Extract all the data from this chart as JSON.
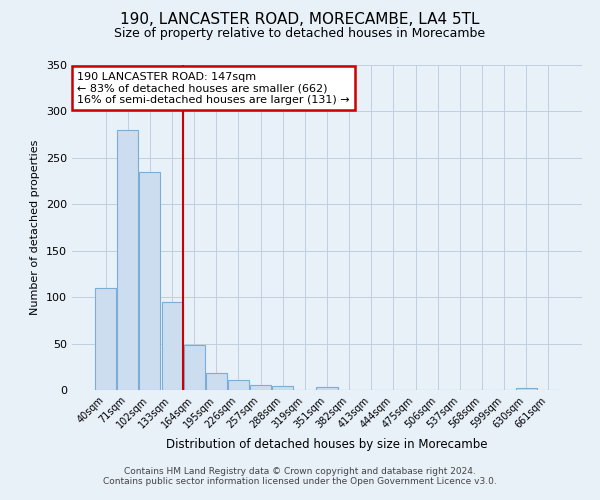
{
  "title": "190, LANCASTER ROAD, MORECAMBE, LA4 5TL",
  "subtitle": "Size of property relative to detached houses in Morecambe",
  "xlabel": "Distribution of detached houses by size in Morecambe",
  "ylabel": "Number of detached properties",
  "bin_labels": [
    "40sqm",
    "71sqm",
    "102sqm",
    "133sqm",
    "164sqm",
    "195sqm",
    "226sqm",
    "257sqm",
    "288sqm",
    "319sqm",
    "351sqm",
    "382sqm",
    "413sqm",
    "444sqm",
    "475sqm",
    "506sqm",
    "537sqm",
    "568sqm",
    "599sqm",
    "630sqm",
    "661sqm"
  ],
  "bar_heights": [
    110,
    280,
    235,
    95,
    49,
    18,
    11,
    5,
    4,
    0,
    3,
    0,
    0,
    0,
    0,
    0,
    0,
    0,
    0,
    2,
    0
  ],
  "bar_color": "#ccddf0",
  "bar_edge_color": "#7aaed6",
  "vline_x": 3.5,
  "vline_color": "#cc0000",
  "annotation_text": "190 LANCASTER ROAD: 147sqm\n← 83% of detached houses are smaller (662)\n16% of semi-detached houses are larger (131) →",
  "annotation_box_color": "#ffffff",
  "annotation_box_edge": "#cc0000",
  "ylim": [
    0,
    350
  ],
  "yticks": [
    0,
    50,
    100,
    150,
    200,
    250,
    300,
    350
  ],
  "grid_color": "#c0cfe0",
  "bg_color": "#e8f0f8",
  "footer1": "Contains HM Land Registry data © Crown copyright and database right 2024.",
  "footer2": "Contains public sector information licensed under the Open Government Licence v3.0."
}
